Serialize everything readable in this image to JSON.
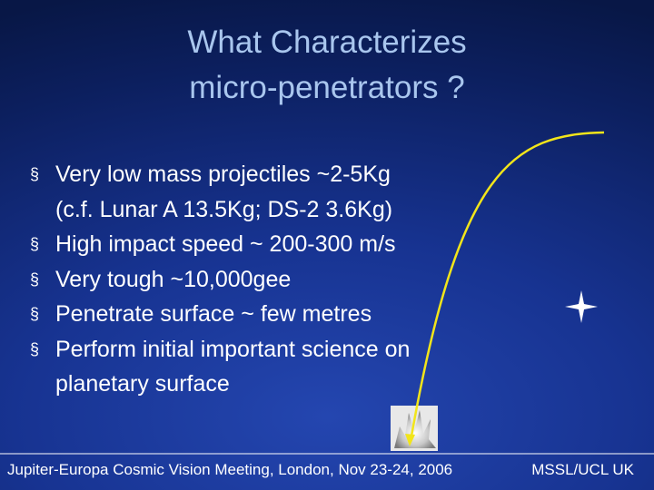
{
  "slide": {
    "title": [
      "What Characterizes",
      "micro-penetrators ?"
    ],
    "bullet": "§",
    "bullets": [
      {
        "lines": [
          "Very low mass projectiles ~2-5Kg",
          "(c.f. Lunar A 13.5Kg; DS-2 3.6Kg)"
        ]
      },
      {
        "lines": [
          "High impact speed ~ 200-300 m/s"
        ]
      },
      {
        "lines": [
          "Very tough ~10,000gee"
        ]
      },
      {
        "lines": [
          "Penetrate surface ~ few metres"
        ]
      },
      {
        "lines": [
          "Perform initial important science on",
          "planetary surface"
        ]
      }
    ],
    "footer": {
      "left": "Jupiter-Europa Cosmic Vision Meeting, London, Nov 23-24, 2006",
      "right": "MSSL/UCL UK"
    }
  }
}
